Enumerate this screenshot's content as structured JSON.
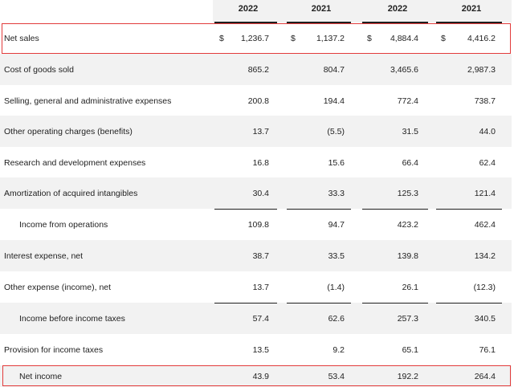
{
  "columns": [
    "2022",
    "2021",
    "2022",
    "2021"
  ],
  "highlight_color": "#e23b3b",
  "rows": [
    {
      "label": "Net sales",
      "values": [
        "1,236.7",
        "1,137.2",
        "4,884.4",
        "4,416.2"
      ],
      "currency_symbol": "$"
    },
    {
      "label": "Cost of goods sold",
      "values": [
        "865.2",
        "804.7",
        "3,465.6",
        "2,987.3"
      ]
    },
    {
      "label": "Selling, general and administrative expenses",
      "values": [
        "200.8",
        "194.4",
        "772.4",
        "738.7"
      ]
    },
    {
      "label": "Other operating charges (benefits)",
      "values": [
        "13.7",
        "(5.5)",
        "31.5",
        "44.0"
      ]
    },
    {
      "label": "Research and development expenses",
      "values": [
        "16.8",
        "15.6",
        "66.4",
        "62.4"
      ]
    },
    {
      "label": "Amortization of acquired intangibles",
      "values": [
        "30.4",
        "33.3",
        "125.3",
        "121.4"
      ]
    },
    {
      "label": "Income from operations",
      "values": [
        "109.8",
        "94.7",
        "423.2",
        "462.4"
      ]
    },
    {
      "label": "Interest expense, net",
      "values": [
        "38.7",
        "33.5",
        "139.8",
        "134.2"
      ]
    },
    {
      "label": "Other expense (income), net",
      "values": [
        "13.7",
        "(1.4)",
        "26.1",
        "(12.3)"
      ]
    },
    {
      "label": "Income before income taxes",
      "values": [
        "57.4",
        "62.6",
        "257.3",
        "340.5"
      ]
    },
    {
      "label": "Provision for income taxes",
      "values": [
        "13.5",
        "9.2",
        "65.1",
        "76.1"
      ]
    },
    {
      "label": "Net income",
      "values": [
        "43.9",
        "53.4",
        "192.2",
        "264.4"
      ]
    }
  ]
}
